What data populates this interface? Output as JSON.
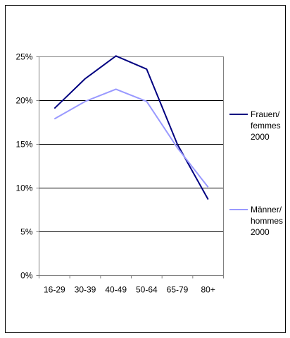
{
  "chart_data": {
    "type": "line",
    "categories": [
      "16-29",
      "30-39",
      "40-49",
      "50-64",
      "65-79",
      "80+"
    ],
    "series": [
      {
        "name": [
          "Frauen/",
          "femmes",
          "2000"
        ],
        "values": [
          19.1,
          22.5,
          25.1,
          23.6,
          15.0,
          8.7
        ],
        "color": "#000080"
      },
      {
        "name": [
          "Männer/",
          "hommes",
          "2000"
        ],
        "values": [
          17.9,
          19.9,
          21.3,
          19.9,
          14.6,
          10.1
        ],
        "color": "#9999ff"
      }
    ],
    "yticks": [
      "0%",
      "5%",
      "10%",
      "15%",
      "20%",
      "25%"
    ],
    "ylim": [
      0,
      25
    ],
    "ytick_step": 5,
    "grid": true,
    "legend": "right"
  }
}
